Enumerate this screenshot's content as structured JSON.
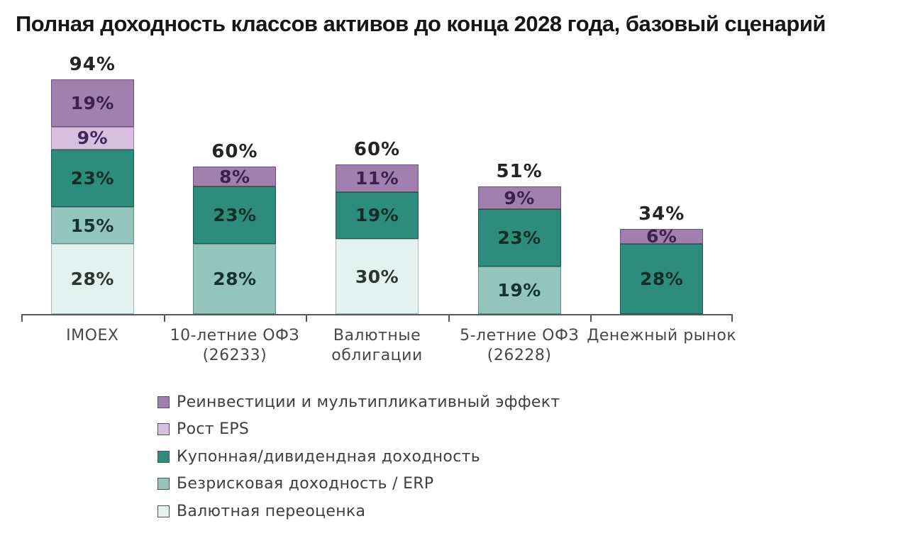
{
  "title": "Полная доходность классов активов до конца 2028 года, базовый сценарий",
  "chart_data": {
    "type": "bar",
    "stacked": true,
    "title": "Полная доходность классов активов до конца 2028 года, базовый сценарий",
    "unit": "%",
    "grid": false,
    "legend_position": "bottom",
    "axis_color": "#53595e",
    "categories": [
      "IMOEX",
      "10-летние ОФЗ (26233)",
      "Валютные облигации",
      "5-летние ОФЗ (26228)",
      "Денежный рынок"
    ],
    "totals": [
      "94%",
      "60%",
      "60%",
      "51%",
      "34%"
    ],
    "series": [
      {
        "name": "Реинвестиции и мультипликативный эффект",
        "values": [
          19,
          8,
          11,
          9,
          6
        ],
        "color": "#a17fae",
        "border": "#6b5176",
        "label_color": "#3c2150"
      },
      {
        "name": "Рост EPS",
        "values": [
          9,
          0,
          0,
          0,
          0
        ],
        "color": "#d8bfdf",
        "border": "#9a7fa3",
        "label_color": "#43265a"
      },
      {
        "name": "Купонная/дивидендная доходность",
        "values": [
          23,
          23,
          19,
          23,
          28
        ],
        "color": "#2e8c7c",
        "border": "#1d5a50",
        "label_color": "#112e29"
      },
      {
        "name": "Безрисковая доходность / ERP",
        "values": [
          15,
          28,
          0,
          19,
          0
        ],
        "color": "#94c5bc",
        "border": "#628f86",
        "label_color": "#15332e"
      },
      {
        "name": "Валютная переоценка",
        "values": [
          28,
          0,
          30,
          0,
          0
        ],
        "color": "#e3f2ee",
        "border": "#a3bdb8",
        "label_color": "#2c3734"
      }
    ]
  }
}
